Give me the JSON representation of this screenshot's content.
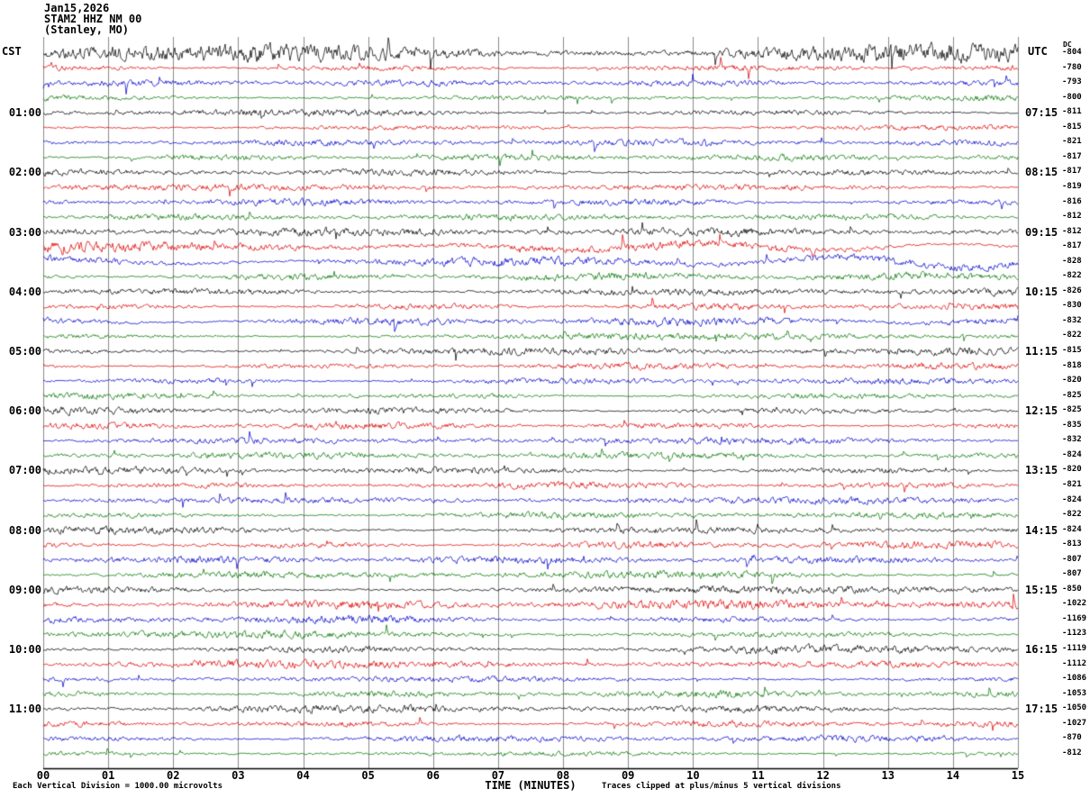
{
  "title": {
    "line1": "Jan15,2026",
    "line2": "STAM2 HHZ NM 00",
    "line3": "(Stanley, MO)"
  },
  "axes": {
    "left_header": "CST",
    "right_header": "UTC",
    "dc_header": "DC",
    "x_axis_label": "TIME (MINUTES)",
    "x_ticks": [
      "00",
      "01",
      "02",
      "03",
      "04",
      "05",
      "06",
      "07",
      "08",
      "09",
      "10",
      "11",
      "12",
      "13",
      "14",
      "15"
    ]
  },
  "footer": {
    "scale_note": "Each Vertical Division = 1000.00 microvolts",
    "clip_note": "Traces clipped at plus/minus 5 vertical divisions"
  },
  "chart_data": {
    "type": "line",
    "subtype": "helicorder-seismogram",
    "minutes_per_line": 15,
    "x_range_minutes": [
      0,
      15
    ],
    "vertical_division_microvolts": 1000.0,
    "clip_divisions": 5,
    "trace_color_cycle": [
      "black",
      "red",
      "blue",
      "green"
    ],
    "colors": {
      "black": "#000000",
      "red": "#dd0000",
      "blue": "#0000cc",
      "green": "#007700"
    },
    "rows": [
      {
        "left": "",
        "right": "",
        "dc": -804,
        "c": "black",
        "amp": 7.0,
        "lf": 0
      },
      {
        "left": "",
        "right": "",
        "dc": -780,
        "c": "red",
        "amp": 2.4,
        "lf": 0
      },
      {
        "left": "",
        "right": "",
        "dc": -793,
        "c": "blue",
        "amp": 2.0,
        "lf": 0
      },
      {
        "left": "",
        "right": "",
        "dc": -800,
        "c": "green",
        "amp": 2.0,
        "lf": 0
      },
      {
        "left": "01:00",
        "right": "07:15",
        "dc": -811,
        "c": "black",
        "amp": 2.4,
        "lf": 0
      },
      {
        "left": "",
        "right": "",
        "dc": -815,
        "c": "red",
        "amp": 2.0,
        "lf": 0
      },
      {
        "left": "",
        "right": "",
        "dc": -821,
        "c": "blue",
        "amp": 2.0,
        "lf": 0
      },
      {
        "left": "",
        "right": "",
        "dc": -817,
        "c": "green",
        "amp": 2.0,
        "lf": 0
      },
      {
        "left": "02:00",
        "right": "08:15",
        "dc": -817,
        "c": "black",
        "amp": 2.4,
        "lf": 0
      },
      {
        "left": "",
        "right": "",
        "dc": -819,
        "c": "red",
        "amp": 2.1,
        "lf": 0
      },
      {
        "left": "",
        "right": "",
        "dc": -816,
        "c": "blue",
        "amp": 2.2,
        "lf": 0
      },
      {
        "left": "",
        "right": "",
        "dc": -812,
        "c": "green",
        "amp": 2.0,
        "lf": 0
      },
      {
        "left": "03:00",
        "right": "09:15",
        "dc": -812,
        "c": "black",
        "amp": 2.6,
        "lf": 0
      },
      {
        "left": "",
        "right": "",
        "dc": -817,
        "c": "red",
        "amp": 3.2,
        "lf": 2.5
      },
      {
        "left": "",
        "right": "",
        "dc": -828,
        "c": "blue",
        "amp": 3.0,
        "lf": 4.0
      },
      {
        "left": "",
        "right": "",
        "dc": -822,
        "c": "green",
        "amp": 2.4,
        "lf": 1.0
      },
      {
        "left": "04:00",
        "right": "10:15",
        "dc": -826,
        "c": "black",
        "amp": 2.6,
        "lf": 0
      },
      {
        "left": "",
        "right": "",
        "dc": -830,
        "c": "red",
        "amp": 2.2,
        "lf": 0
      },
      {
        "left": "",
        "right": "",
        "dc": -832,
        "c": "blue",
        "amp": 2.6,
        "lf": 1.5
      },
      {
        "left": "",
        "right": "",
        "dc": -822,
        "c": "green",
        "amp": 2.2,
        "lf": 0
      },
      {
        "left": "05:00",
        "right": "11:15",
        "dc": -815,
        "c": "black",
        "amp": 2.4,
        "lf": 0
      },
      {
        "left": "",
        "right": "",
        "dc": -818,
        "c": "red",
        "amp": 2.1,
        "lf": 0
      },
      {
        "left": "",
        "right": "",
        "dc": -820,
        "c": "blue",
        "amp": 2.1,
        "lf": 0
      },
      {
        "left": "",
        "right": "",
        "dc": -825,
        "c": "green",
        "amp": 2.0,
        "lf": 0
      },
      {
        "left": "06:00",
        "right": "12:15",
        "dc": -825,
        "c": "black",
        "amp": 2.4,
        "lf": 0
      },
      {
        "left": "",
        "right": "",
        "dc": -835,
        "c": "red",
        "amp": 2.1,
        "lf": 0
      },
      {
        "left": "",
        "right": "",
        "dc": -832,
        "c": "blue",
        "amp": 2.1,
        "lf": 0
      },
      {
        "left": "",
        "right": "",
        "dc": -824,
        "c": "green",
        "amp": 2.1,
        "lf": 0
      },
      {
        "left": "07:00",
        "right": "13:15",
        "dc": -820,
        "c": "black",
        "amp": 2.5,
        "lf": 0
      },
      {
        "left": "",
        "right": "",
        "dc": -821,
        "c": "red",
        "amp": 2.1,
        "lf": 0
      },
      {
        "left": "",
        "right": "",
        "dc": -824,
        "c": "blue",
        "amp": 2.2,
        "lf": 0
      },
      {
        "left": "",
        "right": "",
        "dc": -822,
        "c": "green",
        "amp": 2.1,
        "lf": 0
      },
      {
        "left": "08:00",
        "right": "14:15",
        "dc": -824,
        "c": "black",
        "amp": 2.8,
        "lf": 0
      },
      {
        "left": "",
        "right": "",
        "dc": -813,
        "c": "red",
        "amp": 2.4,
        "lf": 0
      },
      {
        "left": "",
        "right": "",
        "dc": -807,
        "c": "blue",
        "amp": 2.4,
        "lf": 0
      },
      {
        "left": "",
        "right": "",
        "dc": -807,
        "c": "green",
        "amp": 2.5,
        "lf": 0
      },
      {
        "left": "09:00",
        "right": "15:15",
        "dc": -850,
        "c": "black",
        "amp": 2.8,
        "lf": 0
      },
      {
        "left": "",
        "right": "",
        "dc": -1022,
        "c": "red",
        "amp": 3.0,
        "lf": 0
      },
      {
        "left": "",
        "right": "",
        "dc": -1169,
        "c": "blue",
        "amp": 2.6,
        "lf": 0
      },
      {
        "left": "",
        "right": "",
        "dc": -1123,
        "c": "green",
        "amp": 2.4,
        "lf": 0
      },
      {
        "left": "10:00",
        "right": "16:15",
        "dc": -1119,
        "c": "black",
        "amp": 2.8,
        "lf": 0
      },
      {
        "left": "",
        "right": "",
        "dc": -1112,
        "c": "red",
        "amp": 2.5,
        "lf": 0
      },
      {
        "left": "",
        "right": "",
        "dc": -1086,
        "c": "blue",
        "amp": 2.3,
        "lf": 0
      },
      {
        "left": "",
        "right": "",
        "dc": -1053,
        "c": "green",
        "amp": 2.2,
        "lf": 0
      },
      {
        "left": "11:00",
        "right": "17:15",
        "dc": -1050,
        "c": "black",
        "amp": 2.5,
        "lf": 0
      },
      {
        "left": "",
        "right": "",
        "dc": -1027,
        "c": "red",
        "amp": 2.3,
        "lf": 0
      },
      {
        "left": "",
        "right": "",
        "dc": -870,
        "c": "blue",
        "amp": 2.1,
        "lf": 0
      },
      {
        "left": "",
        "right": "",
        "dc": -812,
        "c": "green",
        "amp": 2.1,
        "lf": 0
      }
    ]
  }
}
